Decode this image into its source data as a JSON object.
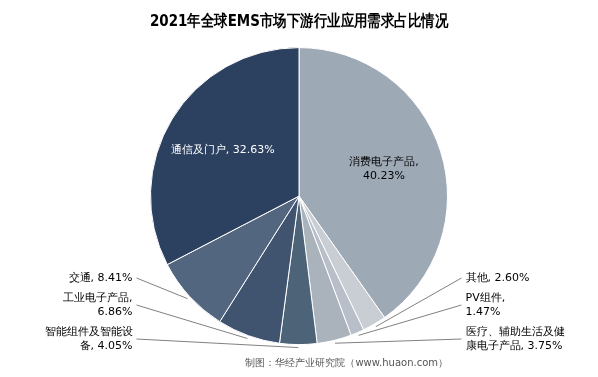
{
  "chart_data": {
    "type": "pie",
    "title": "2021年全球EMS市场下游行业应用需求占比情况",
    "categories": [
      "消费电子产品,\n40.23%",
      "其他, 2.60%",
      "PV组件,\n1.47%",
      "医疗、辅助生活及健\n康电子产品, 3.75%",
      "智能组件及智能设\n备, 4.05%",
      "工业电子产品,\n6.86%",
      "交通, 8.41%",
      "通信及门户, 32.63%"
    ],
    "values": [
      40.23,
      2.6,
      1.47,
      3.75,
      4.05,
      6.86,
      8.41,
      32.63
    ],
    "colors": [
      "#9ea9b6",
      "#c9ced4",
      "#b8bfc8",
      "#aab2bc",
      "#4d6478",
      "#405470",
      "#526680",
      "#2c4060"
    ],
    "annotations": [
      "制图：华经产业研究院（www.huaon.com）"
    ]
  }
}
